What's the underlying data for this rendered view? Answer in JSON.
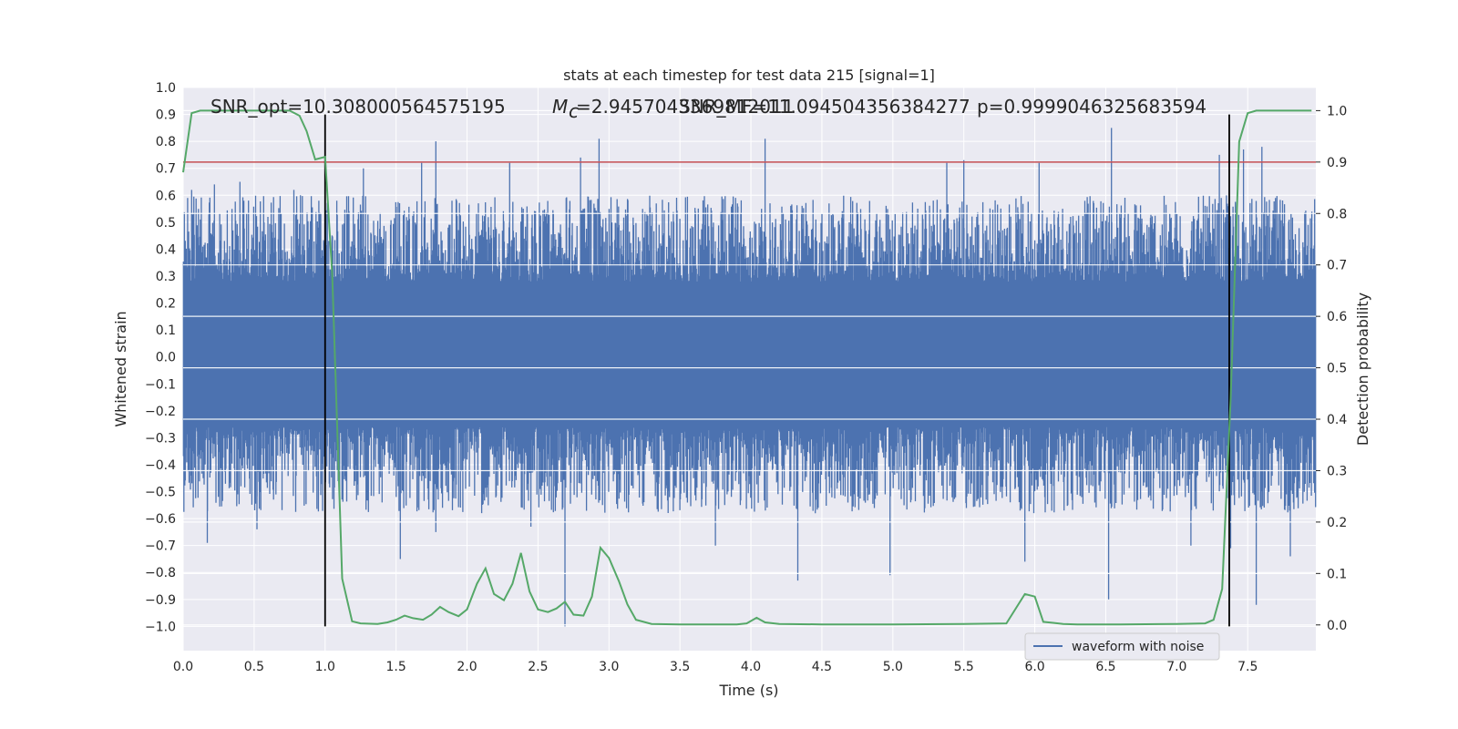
{
  "chart_data": {
    "type": "line",
    "title": "stats at each timestep for test data 215 [signal=1]",
    "xlabel": "Time (s)",
    "ylabel_left": "Whitened strain",
    "ylabel_right": "Detection probability",
    "xlim": [
      0.0,
      7.98
    ],
    "ylim_left": [
      -1.09,
      1.0
    ],
    "ylim_right": [
      -0.05,
      1.045
    ],
    "x_ticks": [
      "0.0",
      "0.5",
      "1.0",
      "1.5",
      "2.0",
      "2.5",
      "3.0",
      "3.5",
      "4.0",
      "4.5",
      "5.0",
      "5.5",
      "6.0",
      "6.5",
      "7.0",
      "7.5"
    ],
    "y_left_ticks": [
      "1.0",
      "0.9",
      "0.8",
      "0.7",
      "0.6",
      "0.5",
      "0.4",
      "0.3",
      "0.2",
      "0.1",
      "0.0",
      "-0.1",
      "-0.2",
      "-0.3",
      "-0.4",
      "-0.5",
      "-0.6",
      "-0.7",
      "-0.8",
      "-0.9",
      "-1.0"
    ],
    "y_right_ticks": [
      "1.0",
      "0.9",
      "0.8",
      "0.7",
      "0.6",
      "0.5",
      "0.4",
      "0.3",
      "0.2",
      "0.1",
      "0.0"
    ],
    "grid": true,
    "legend_placement": "lower-right",
    "annotations": {
      "snr_opt": "SNR_opt=10.308000564575195",
      "mc": "=2.9457043369812011",
      "mc_symbol": "M",
      "mc_subscript": "c",
      "snr_mf": "SNR_MF=11.094504356384277",
      "p_value": "p=0.9999046325683594"
    },
    "threshold": {
      "value": 0.9,
      "axis": "right",
      "color": "#c44e52"
    },
    "vertical_markers": [
      1.0,
      7.37
    ],
    "series": [
      {
        "name": "waveform with noise",
        "axis": "left",
        "color": "#4c72b0",
        "kind": "noise-band",
        "typical_range": [
          -0.38,
          0.4
        ],
        "upper_peaks": [
          {
            "x": 0.06,
            "y": 0.62
          },
          {
            "x": 0.22,
            "y": 0.64
          },
          {
            "x": 0.4,
            "y": 0.65
          },
          {
            "x": 0.78,
            "y": 0.62
          },
          {
            "x": 1.27,
            "y": 0.7
          },
          {
            "x": 1.68,
            "y": 0.72
          },
          {
            "x": 1.78,
            "y": 0.8
          },
          {
            "x": 2.3,
            "y": 0.72
          },
          {
            "x": 2.8,
            "y": 0.74
          },
          {
            "x": 2.93,
            "y": 0.81
          },
          {
            "x": 4.1,
            "y": 0.81
          },
          {
            "x": 5.38,
            "y": 0.72
          },
          {
            "x": 5.5,
            "y": 0.73
          },
          {
            "x": 6.03,
            "y": 0.72
          },
          {
            "x": 6.54,
            "y": 0.85
          },
          {
            "x": 7.3,
            "y": 0.75
          },
          {
            "x": 7.47,
            "y": 0.77
          },
          {
            "x": 7.6,
            "y": 0.78
          }
        ],
        "lower_peaks": [
          {
            "x": 0.17,
            "y": -0.69
          },
          {
            "x": 0.52,
            "y": -0.64
          },
          {
            "x": 1.53,
            "y": -0.75
          },
          {
            "x": 1.78,
            "y": -0.65
          },
          {
            "x": 2.45,
            "y": -0.63
          },
          {
            "x": 2.69,
            "y": -1.0
          },
          {
            "x": 3.75,
            "y": -0.7
          },
          {
            "x": 4.33,
            "y": -0.83
          },
          {
            "x": 4.98,
            "y": -0.81
          },
          {
            "x": 5.93,
            "y": -0.76
          },
          {
            "x": 6.52,
            "y": -0.9
          },
          {
            "x": 7.1,
            "y": -0.7
          },
          {
            "x": 7.38,
            "y": -0.71
          },
          {
            "x": 7.56,
            "y": -0.92
          },
          {
            "x": 7.8,
            "y": -0.74
          }
        ]
      },
      {
        "name": "",
        "axis": "right",
        "color": "#55a868",
        "kind": "line",
        "x": [
          0.0,
          0.06,
          0.12,
          0.25,
          0.5,
          0.75,
          0.82,
          0.87,
          0.93,
          1.0,
          1.05,
          1.12,
          1.19,
          1.25,
          1.37,
          1.44,
          1.5,
          1.56,
          1.62,
          1.69,
          1.75,
          1.81,
          1.87,
          1.94,
          2.0,
          2.07,
          2.13,
          2.19,
          2.26,
          2.32,
          2.38,
          2.44,
          2.5,
          2.57,
          2.63,
          2.69,
          2.75,
          2.82,
          2.88,
          2.94,
          3.0,
          3.07,
          3.13,
          3.19,
          3.3,
          3.5,
          3.9,
          3.97,
          4.04,
          4.1,
          4.2,
          4.5,
          5.0,
          5.5,
          5.8,
          5.93,
          6.0,
          6.06,
          6.13,
          6.2,
          6.3,
          6.6,
          7.0,
          7.2,
          7.26,
          7.32,
          7.38,
          7.44,
          7.5,
          7.56,
          7.7,
          7.95
        ],
        "y": [
          0.88,
          0.995,
          1.0,
          1.0,
          1.0,
          1.0,
          0.99,
          0.96,
          0.905,
          0.91,
          0.68,
          0.09,
          0.007,
          0.003,
          0.002,
          0.005,
          0.01,
          0.018,
          0.013,
          0.01,
          0.02,
          0.035,
          0.025,
          0.017,
          0.03,
          0.08,
          0.11,
          0.06,
          0.048,
          0.08,
          0.14,
          0.065,
          0.03,
          0.025,
          0.032,
          0.045,
          0.02,
          0.018,
          0.055,
          0.15,
          0.13,
          0.085,
          0.04,
          0.01,
          0.002,
          0.001,
          0.001,
          0.003,
          0.014,
          0.005,
          0.002,
          0.001,
          0.001,
          0.002,
          0.003,
          0.06,
          0.055,
          0.006,
          0.004,
          0.002,
          0.001,
          0.001,
          0.002,
          0.003,
          0.01,
          0.07,
          0.44,
          0.94,
          0.995,
          1.0,
          1.0,
          1.0
        ]
      }
    ]
  }
}
